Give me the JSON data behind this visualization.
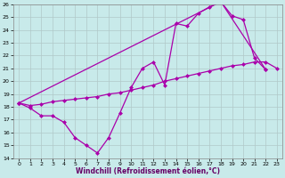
{
  "xlabel": "Windchill (Refroidissement éolien,°C)",
  "background_color": "#c8eaea",
  "grid_color": "#b0c8c8",
  "line_color": "#aa00aa",
  "xlim": [
    -0.5,
    23.5
  ],
  "ylim": [
    14,
    26
  ],
  "yticks": [
    14,
    15,
    16,
    17,
    18,
    19,
    20,
    21,
    22,
    23,
    24,
    25,
    26
  ],
  "xticks": [
    0,
    1,
    2,
    3,
    4,
    5,
    6,
    7,
    8,
    9,
    10,
    11,
    12,
    13,
    14,
    15,
    16,
    17,
    18,
    19,
    20,
    21,
    22,
    23
  ],
  "series1_x": [
    0,
    1,
    2,
    3,
    4,
    5,
    6,
    7,
    8,
    9,
    10,
    11,
    12,
    13,
    14,
    15,
    16,
    17,
    18,
    19,
    20,
    21,
    22
  ],
  "series1_y": [
    18.3,
    17.9,
    17.3,
    17.3,
    16.8,
    15.6,
    15.0,
    14.4,
    15.6,
    17.5,
    19.5,
    21.0,
    21.5,
    19.7,
    24.5,
    24.3,
    25.3,
    25.8,
    26.2,
    25.1,
    24.8,
    21.8,
    20.9
  ],
  "series2_x": [
    0,
    1,
    2,
    3,
    4,
    5,
    6,
    7,
    8,
    9,
    10,
    11,
    12,
    13,
    14,
    15,
    16,
    17,
    18,
    19,
    20,
    21,
    22,
    23
  ],
  "series2_y": [
    18.3,
    18.1,
    18.2,
    18.4,
    18.5,
    18.6,
    18.7,
    18.8,
    19.0,
    19.1,
    19.3,
    19.5,
    19.7,
    20.0,
    20.2,
    20.4,
    20.6,
    20.8,
    21.0,
    21.2,
    21.3,
    21.5,
    21.5,
    21.0
  ],
  "series3_x": [
    0,
    18,
    22
  ],
  "series3_y": [
    18.3,
    26.2,
    20.9
  ]
}
